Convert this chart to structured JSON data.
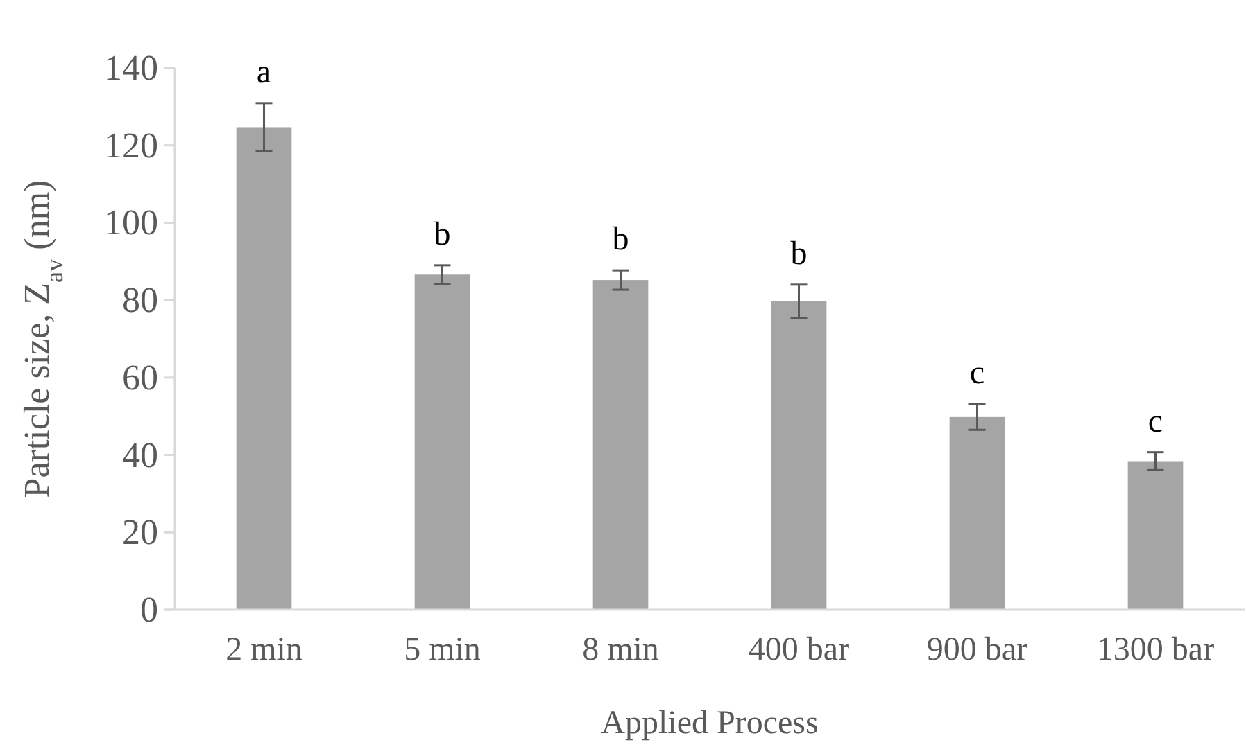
{
  "chart_data": {
    "type": "bar",
    "xlabel": "Applied Process",
    "ylabel": "Particle size, Z$_{av}$ (nm)",
    "categories": [
      "2 min",
      "5 min",
      "8 min",
      "400 bar",
      "900 bar",
      "1300 bar"
    ],
    "values": [
      124.7,
      86.6,
      85.2,
      79.7,
      49.8,
      38.4
    ],
    "errors": [
      6.2,
      2.4,
      2.5,
      4.3,
      3.3,
      2.3
    ],
    "color": "#a5a5a5",
    "ylim": [
      0,
      140
    ],
    "yticks": [
      0,
      20,
      40,
      60,
      80,
      100,
      120,
      140
    ],
    "grid": false,
    "annotations": [
      {
        "text": "a",
        "x": "2 min",
        "y": 130.9
      },
      {
        "text": "b",
        "x": "5 min",
        "y": 89
      },
      {
        "text": "b",
        "x": "8 min",
        "y": 87.7
      },
      {
        "text": "b",
        "x": "400 bar",
        "y": 84
      },
      {
        "text": "c",
        "x": "900 bar",
        "y": 53.1
      },
      {
        "text": "c",
        "x": "1300 bar",
        "y": 40.7
      }
    ]
  }
}
